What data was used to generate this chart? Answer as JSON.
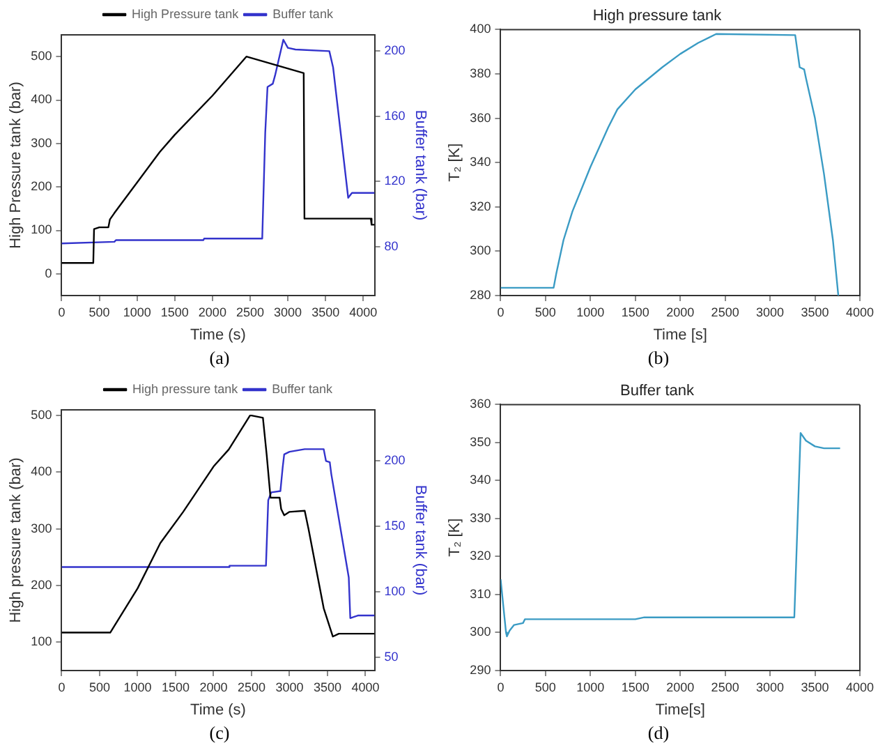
{
  "chart_data": [
    {
      "type": "line",
      "xlabel": "Time (s)",
      "ylabel": "High Pressure tank (bar)",
      "y2label": "Buffer tank (bar)",
      "annotations": [
        "(a)"
      ],
      "legend": "top",
      "xlim": [
        0,
        4150
      ],
      "xticks": [
        0,
        500,
        1000,
        1500,
        2000,
        2500,
        3000,
        3500,
        4000
      ],
      "ylim": [
        -50,
        550
      ],
      "yticks": [
        0,
        100,
        200,
        300,
        400,
        500
      ],
      "y2lim": [
        50,
        210
      ],
      "y2ticks": [
        80,
        120,
        160,
        200
      ],
      "series": [
        {
          "name": "High Pressure tank",
          "color": "#000000",
          "x": [
            0,
            420,
            430,
            500,
            620,
            640,
            700,
            1300,
            1500,
            2000,
            2450,
            3210,
            3220,
            4100,
            4110,
            4150
          ],
          "values": [
            25,
            25,
            103,
            107,
            107,
            125,
            140,
            280,
            320,
            410,
            500,
            462,
            127,
            127,
            113,
            113
          ]
        },
        {
          "name": "Buffer tank",
          "color": "#3333cc",
          "axis": "y2",
          "x": [
            0,
            700,
            720,
            1880,
            1890,
            2660,
            2700,
            2730,
            2800,
            2830,
            2880,
            2940,
            3000,
            3100,
            3550,
            3600,
            3750,
            3800,
            3850,
            4150
          ],
          "values": [
            82,
            83,
            84,
            84,
            85,
            85,
            150,
            178,
            180,
            185,
            195,
            207,
            202,
            201,
            200,
            190,
            130,
            110,
            113,
            113
          ]
        }
      ]
    },
    {
      "type": "line",
      "title": "High pressure tank",
      "xlabel": "Time [s]",
      "ylabel": "T₂ [K]",
      "annotations": [
        "(b)"
      ],
      "xlim": [
        0,
        4000
      ],
      "xticks": [
        0,
        500,
        1000,
        1500,
        2000,
        2500,
        3000,
        3500,
        4000
      ],
      "ylim": [
        280,
        400
      ],
      "yticks": [
        280,
        300,
        320,
        340,
        360,
        380,
        400
      ],
      "series": [
        {
          "color": "#3a9bc4",
          "x": [
            0,
            590,
            620,
            700,
            800,
            1000,
            1200,
            1300,
            1500,
            1800,
            2000,
            2200,
            2400,
            3280,
            3330,
            3380,
            3400,
            3500,
            3600,
            3700,
            3760
          ],
          "values": [
            283.5,
            283.5,
            290,
            305,
            318,
            338,
            356,
            364,
            373,
            383,
            389,
            394,
            398,
            397.5,
            383,
            382,
            378,
            360,
            335,
            305,
            280
          ]
        }
      ]
    },
    {
      "type": "line",
      "xlabel": "Time (s)",
      "ylabel": "High pressure tank (bar)",
      "y2label": "Buffer tank (bar)",
      "annotations": [
        "(c)"
      ],
      "legend": "top",
      "xlim": [
        0,
        4120
      ],
      "xticks": [
        0,
        500,
        1000,
        1500,
        2000,
        2500,
        3000,
        3500,
        4000
      ],
      "ylim": [
        50,
        510
      ],
      "yticks": [
        100,
        200,
        300,
        400,
        500
      ],
      "y2lim": [
        40,
        239
      ],
      "y2ticks": [
        50,
        100,
        150,
        200
      ],
      "series": [
        {
          "name": "High pressure tank",
          "color": "#000000",
          "x": [
            0,
            640,
            1000,
            1300,
            1600,
            2000,
            2200,
            2480,
            2500,
            2650,
            2700,
            2750,
            2870,
            2890,
            2930,
            3000,
            3200,
            3250,
            3350,
            3450,
            3570,
            3650,
            4120
          ],
          "values": [
            117,
            117,
            195,
            275,
            330,
            410,
            440,
            500,
            500,
            496,
            430,
            355,
            355,
            335,
            324,
            330,
            332,
            300,
            230,
            160,
            110,
            115,
            115
          ]
        },
        {
          "name": "Buffer tank",
          "color": "#3333cc",
          "axis": "y2",
          "x": [
            0,
            2200,
            2210,
            2690,
            2720,
            2760,
            2880,
            2910,
            2930,
            3000,
            3200,
            3450,
            3480,
            3530,
            3550,
            3780,
            3800,
            3900,
            4120
          ],
          "values": [
            119,
            119,
            120,
            120,
            170,
            176,
            177,
            195,
            205,
            207,
            209,
            209,
            200,
            199,
            190,
            111,
            80,
            82,
            82
          ]
        }
      ]
    },
    {
      "type": "line",
      "title": "Buffer tank",
      "xlabel": "Time[s]",
      "ylabel": "T₂ [K]",
      "annotations": [
        "(d)"
      ],
      "xlim": [
        0,
        4000
      ],
      "xticks": [
        0,
        500,
        1000,
        1500,
        2000,
        2500,
        3000,
        3500,
        4000
      ],
      "ylim": [
        290,
        360
      ],
      "yticks": [
        290,
        300,
        310,
        320,
        330,
        340,
        350,
        360
      ],
      "series": [
        {
          "color": "#3a9bc4",
          "x": [
            0,
            60,
            70,
            100,
            150,
            250,
            270,
            1500,
            1600,
            3270,
            3340,
            3400,
            3500,
            3600,
            3780
          ],
          "values": [
            314,
            300,
            299,
            300.5,
            302,
            302.5,
            303.5,
            303.5,
            304,
            304,
            352.5,
            350.5,
            349,
            348.5,
            348.5
          ]
        }
      ]
    }
  ]
}
